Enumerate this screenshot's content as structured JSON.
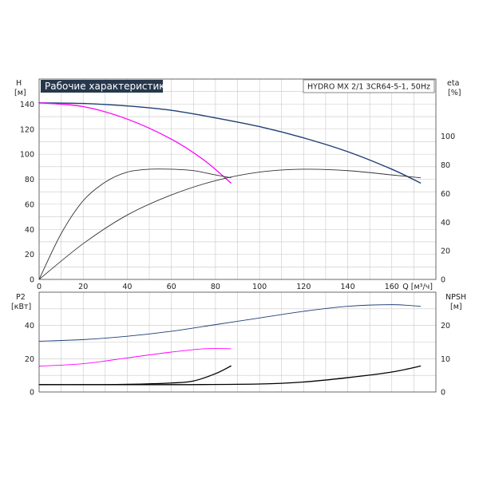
{
  "chart_data": [
    {
      "type": "line",
      "title": "Рабочие характеристики",
      "model": "HYDRO MX 2/1 3CR64-5-1, 50Hz",
      "xlabel": "Q [м³/ч]",
      "ylabel_left": [
        "H",
        "[м]"
      ],
      "ylabel_right": [
        "eta",
        "[%]"
      ],
      "xlim": [
        0,
        180
      ],
      "ylim_left": [
        0,
        160
      ],
      "ylim_right": [
        0,
        140
      ],
      "x_ticks": [
        "0",
        "20",
        "40",
        "60",
        "80",
        "100",
        "120",
        "140",
        "160"
      ],
      "y_ticks_left": [
        "0",
        "20",
        "40",
        "60",
        "80",
        "100",
        "120",
        "140"
      ],
      "y_ticks_right": [
        "0",
        "20",
        "40",
        "60",
        "80",
        "100"
      ],
      "grid": true,
      "series": [
        {
          "axis": "left",
          "color": "#1f3f77",
          "x": [
            0,
            20,
            40,
            60,
            80,
            100,
            120,
            140,
            160,
            173
          ],
          "y": [
            141,
            140.5,
            138.5,
            135,
            129,
            122,
            113,
            102,
            88,
            77
          ]
        },
        {
          "axis": "left",
          "color": "#ff00ff",
          "x": [
            0,
            20,
            40,
            60,
            75,
            87
          ],
          "y": [
            141,
            138,
            128,
            112,
            95,
            77
          ]
        },
        {
          "axis": "right",
          "color": "#333333",
          "x": [
            0,
            10,
            20,
            30,
            40,
            50,
            60,
            70,
            80,
            87
          ],
          "y": [
            0,
            32,
            55,
            68,
            75,
            77,
            77,
            76,
            73,
            71
          ]
        },
        {
          "axis": "right",
          "color": "#333333",
          "x": [
            0,
            20,
            40,
            60,
            80,
            100,
            120,
            140,
            160,
            173
          ],
          "y": [
            0,
            25,
            45,
            59,
            69,
            75,
            77,
            76,
            73,
            71
          ]
        }
      ]
    },
    {
      "type": "line",
      "ylabel_left": [
        "P2",
        "[кВт]"
      ],
      "ylabel_right": [
        "NPSH",
        "[м]"
      ],
      "xlim": [
        0,
        180
      ],
      "ylim_left": [
        0,
        60
      ],
      "ylim_right": [
        0,
        30
      ],
      "y_ticks_left": [
        "0",
        "20",
        "40"
      ],
      "y_ticks_right": [
        "0",
        "10",
        "20"
      ],
      "grid": true,
      "series": [
        {
          "axis": "left",
          "color": "#1f3f77",
          "x": [
            0,
            20,
            40,
            60,
            80,
            100,
            120,
            140,
            160,
            173
          ],
          "y": [
            30.5,
            31.5,
            33.5,
            36.5,
            40.5,
            44.5,
            48.5,
            51.5,
            52.5,
            51.5
          ]
        },
        {
          "axis": "left",
          "color": "#ff00ff",
          "x": [
            0,
            20,
            40,
            60,
            75,
            87
          ],
          "y": [
            15.5,
            17,
            20.5,
            24,
            26,
            26
          ]
        },
        {
          "axis": "right",
          "color": "#000000",
          "x": [
            0,
            20,
            40,
            60,
            70,
            80,
            87
          ],
          "y": [
            2.2,
            2.2,
            2.3,
            2.7,
            3.3,
            5.5,
            7.8
          ]
        },
        {
          "axis": "right",
          "color": "#000000",
          "x": [
            0,
            60,
            100,
            120,
            140,
            160,
            173
          ],
          "y": [
            2.2,
            2.2,
            2.4,
            3.0,
            4.3,
            6.0,
            7.8
          ]
        }
      ]
    }
  ]
}
